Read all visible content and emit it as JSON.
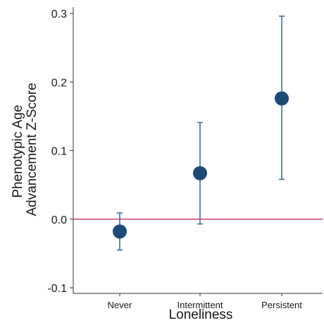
{
  "chart_data": {
    "type": "scatter",
    "categories": [
      "Never",
      "Intermittent",
      "Persistent"
    ],
    "points": [
      {
        "category": "Never",
        "estimate": -0.018,
        "ci_low": -0.045,
        "ci_high": 0.009
      },
      {
        "category": "Intermittent",
        "estimate": 0.067,
        "ci_low": -0.007,
        "ci_high": 0.141
      },
      {
        "category": "Persistent",
        "estimate": 0.176,
        "ci_low": 0.058,
        "ci_high": 0.296
      }
    ],
    "xlabel": "Loneliness",
    "ylabel_lines": [
      "Phenotypic Age",
      "Advancement Z-Score"
    ],
    "ylim": [
      -0.1,
      0.3
    ],
    "yticks": [
      -0.1,
      0.0,
      0.1,
      0.2,
      0.3
    ],
    "ytick_labels": [
      "-0.1",
      "0.0",
      "0.1",
      "0.2",
      "0.3"
    ],
    "reference_line": 0,
    "grid": false,
    "colors": {
      "marker": "#1b4a78",
      "error_bar": "#3f6e99",
      "reference_line": "#c8406a",
      "axis": "#333333"
    }
  }
}
